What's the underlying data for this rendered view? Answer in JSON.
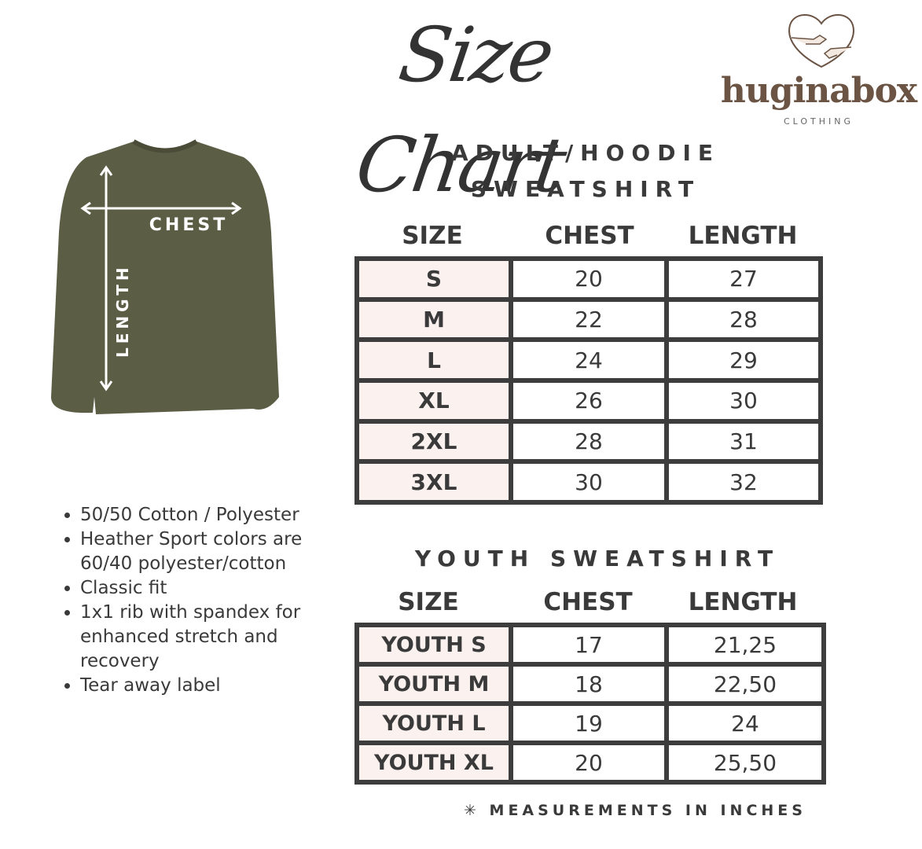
{
  "title": "Size Chart",
  "logo": {
    "brand": "huginabox",
    "sub": "CLOTHING",
    "color": "#6b5444"
  },
  "garment": {
    "chest_label": "CHEST",
    "length_label": "LENGTH",
    "color": "#5b5d45"
  },
  "adult": {
    "heading_line1": "ADULT/HOODIE",
    "heading_line2": "SWEATSHIRT",
    "columns": [
      "SIZE",
      "CHEST",
      "LENGTH"
    ],
    "rows": [
      [
        "S",
        "20",
        "27"
      ],
      [
        "M",
        "22",
        "28"
      ],
      [
        "L",
        "24",
        "29"
      ],
      [
        "XL",
        "26",
        "30"
      ],
      [
        "2XL",
        "28",
        "31"
      ],
      [
        "3XL",
        "30",
        "32"
      ]
    ]
  },
  "youth": {
    "heading": "YOUTH SWEATSHIRT",
    "columns": [
      "SIZE",
      "CHEST",
      "LENGTH"
    ],
    "rows": [
      [
        "YOUTH S",
        "17",
        "21,25"
      ],
      [
        "YOUTH M",
        "18",
        "22,50"
      ],
      [
        "YOUTH  L",
        "19",
        "24"
      ],
      [
        "YOUTH XL",
        "20",
        "25,50"
      ]
    ]
  },
  "features": [
    "50/50 Cotton / Polyester",
    "Heather Sport colors are 60/40 polyester/cotton",
    "Classic fit",
    "1x1 rib with spandex for enhanced stretch and recovery",
    "Tear away label"
  ],
  "footnote": "✳ MEASUREMENTS IN INCHES",
  "colors": {
    "border": "#3d3d3d",
    "size_cell": "#fbf1ef"
  }
}
